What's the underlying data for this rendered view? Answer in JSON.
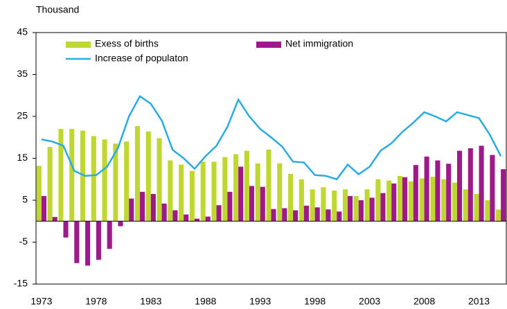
{
  "chart_data": {
    "type": "bar",
    "y_label": "Thousand",
    "categories": [
      "1973",
      null,
      null,
      null,
      null,
      "1978",
      null,
      null,
      null,
      null,
      "1983",
      null,
      null,
      null,
      null,
      "1988",
      null,
      null,
      null,
      null,
      "1993",
      null,
      null,
      null,
      null,
      "1998",
      null,
      null,
      null,
      null,
      "2003",
      null,
      null,
      null,
      null,
      "2008",
      null,
      null,
      null,
      null,
      "2013",
      null,
      null
    ],
    "series": [
      {
        "name": "Exess of births",
        "type": "bar",
        "color": "#c0d731",
        "values": [
          13.2,
          17.7,
          22,
          22,
          21.6,
          20.3,
          19.5,
          18.5,
          19,
          22.7,
          21.4,
          19.8,
          14.5,
          13.5,
          12,
          14.2,
          14.2,
          15.3,
          16,
          16.8,
          13.8,
          17.1,
          13.8,
          11.3,
          10,
          7.6,
          8.1,
          7.3,
          7.6,
          6,
          7.6,
          10,
          9.7,
          10.8,
          9.5,
          10.2,
          10.6,
          10,
          9.2,
          7.6,
          6.5,
          5,
          2.8
        ]
      },
      {
        "name": "Net immigration",
        "type": "bar",
        "color": "#9e1a8b",
        "values": [
          6,
          1,
          -3.9,
          -10,
          -10.6,
          -9.2,
          -6.6,
          -1.2,
          5.4,
          7,
          6.5,
          4.2,
          2.6,
          1.6,
          0.6,
          1.1,
          3.8,
          7,
          13,
          8.4,
          8.2,
          2.9,
          3.1,
          2.6,
          3.7,
          3.3,
          2.8,
          2.3,
          6,
          5,
          5.6,
          6.7,
          9,
          10.5,
          13.4,
          15.4,
          14.5,
          13.7,
          16.8,
          17.4,
          18,
          15.8,
          12.4
        ]
      },
      {
        "name": "Increase of populaton",
        "type": "line",
        "color": "#29abe2",
        "values": [
          19.5,
          19,
          18,
          12,
          10.8,
          11,
          13,
          17.5,
          25,
          29.8,
          28,
          24,
          17,
          15,
          12.5,
          15.5,
          18,
          22.5,
          29,
          25,
          22,
          20,
          17.8,
          14.2,
          14,
          11,
          10.8,
          10,
          13.5,
          11.2,
          13,
          16.8,
          18.6,
          21.3,
          23.5,
          26,
          25,
          23.8,
          26,
          25.3,
          24.6,
          20.6,
          15.5
        ]
      }
    ],
    "ylim": [
      -15,
      45
    ],
    "yticks": [
      -15,
      -5,
      5,
      15,
      25,
      35,
      45
    ],
    "legend": "upper left"
  }
}
